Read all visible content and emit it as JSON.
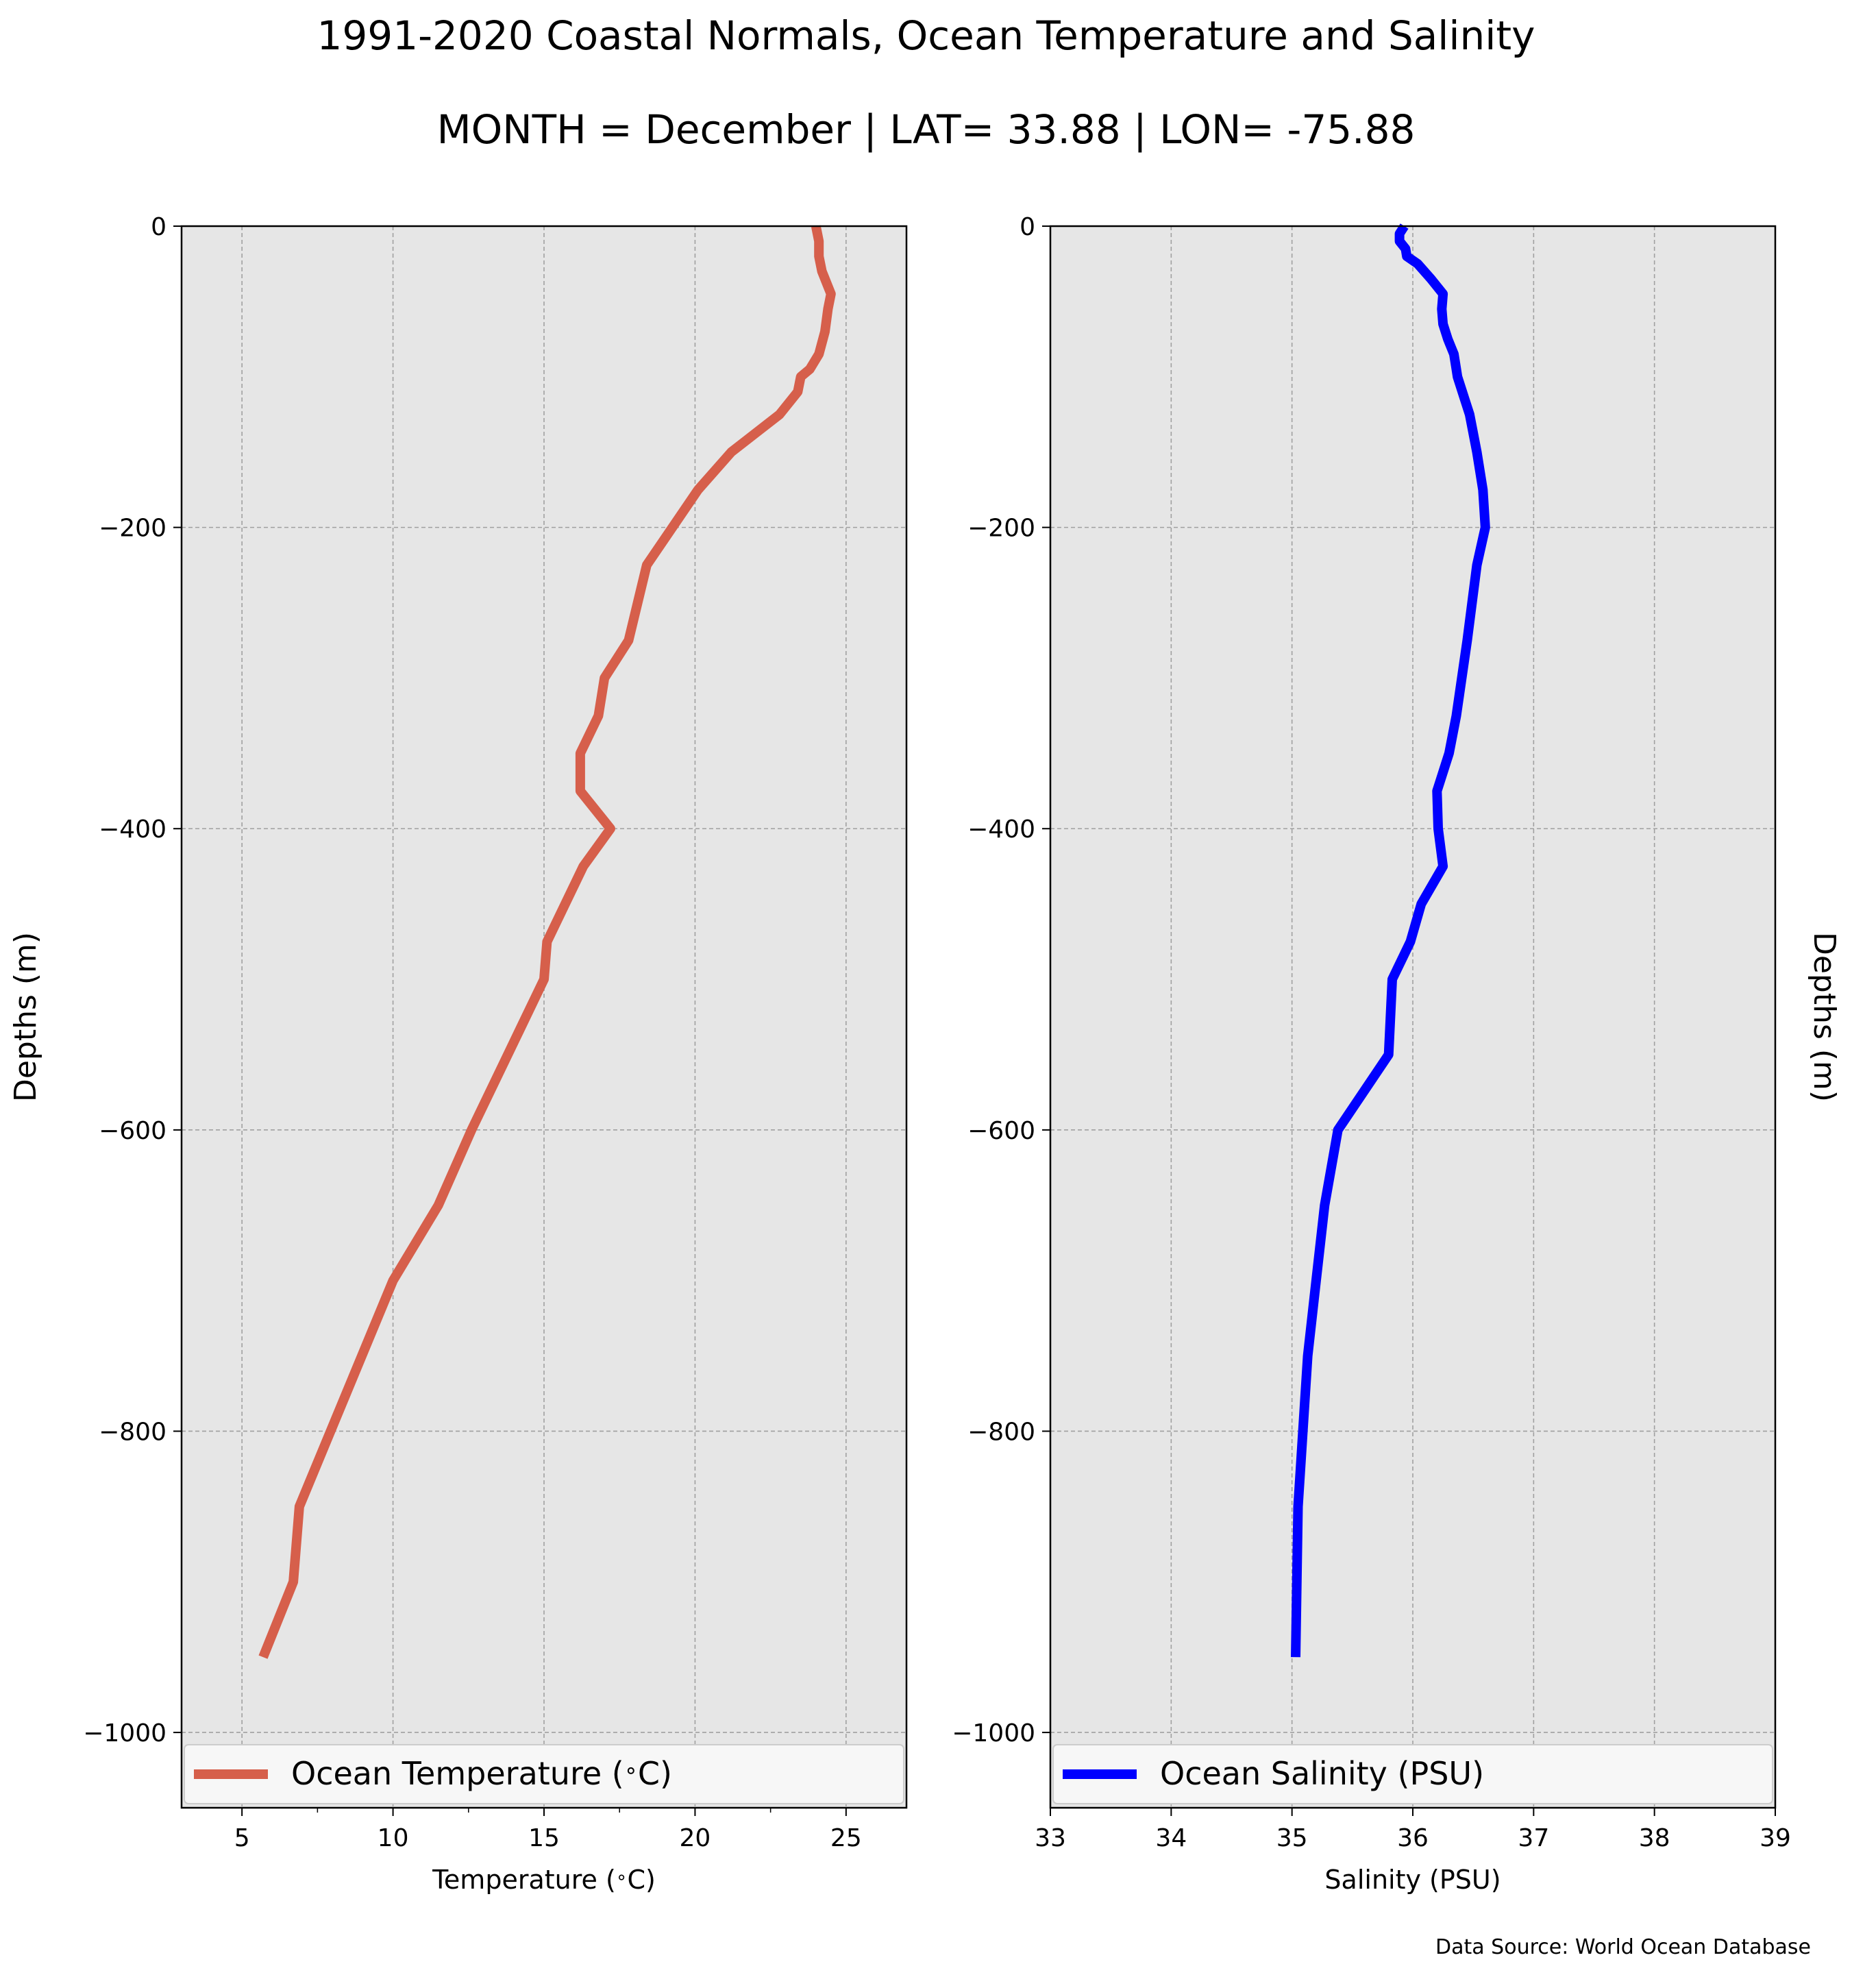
{
  "figure": {
    "title": "1991-2020 Coastal Normals, Ocean Temperature and Salinity",
    "subtitle": "MONTH = December | LAT= 33.88 | LON= -75.88",
    "source_note": "Data Source: World Ocean Database"
  },
  "colors": {
    "temperature_line": "#d65f4b",
    "salinity_line": "#0000ff",
    "plot_background": "#e6e6e6",
    "grid": "#a0a0a0"
  },
  "chart_data": [
    {
      "type": "line",
      "xlabel": "Temperature ($^\\circ$C)",
      "ylabel": "Depths (m)",
      "xlim": [
        3,
        27
      ],
      "ylim": [
        -1050,
        0
      ],
      "xticks": [
        5,
        10,
        15,
        20,
        25
      ],
      "xtick_labels": [
        "5",
        "10",
        "15",
        "20",
        "25"
      ],
      "yticks": [
        0,
        -200,
        -400,
        -600,
        -800,
        -1000
      ],
      "ytick_labels": [
        "0",
        "−200",
        "−400",
        "−600",
        "−800",
        "−1000"
      ],
      "grid": true,
      "legend_position": "bottom",
      "series": [
        {
          "name": "Ocean Temperature ($^\\circ$C)",
          "x": [
            24.0,
            24.1,
            24.1,
            24.2,
            24.5,
            24.4,
            24.3,
            24.1,
            23.8,
            23.5,
            23.4,
            22.8,
            21.2,
            20.1,
            18.4,
            17.8,
            17.0,
            16.8,
            16.2,
            16.2,
            17.2,
            16.3,
            15.1,
            15.0,
            13.8,
            12.6,
            11.5,
            10.0,
            6.9,
            6.7,
            5.7
          ],
          "y": [
            0,
            -10,
            -20,
            -30,
            -45,
            -55,
            -70,
            -85,
            -95,
            -100,
            -110,
            -125,
            -150,
            -175,
            -225,
            -275,
            -300,
            -325,
            -350,
            -375,
            -400,
            -425,
            -475,
            -500,
            -550,
            -600,
            -650,
            -700,
            -850,
            -900,
            -950
          ]
        }
      ]
    },
    {
      "type": "line",
      "xlabel": "Salinity (PSU)",
      "ylabel": "Depths (m)",
      "xlim": [
        33,
        39
      ],
      "ylim": [
        -1050,
        0
      ],
      "xticks": [
        33,
        34,
        35,
        36,
        37,
        38,
        39
      ],
      "xtick_labels": [
        "33",
        "34",
        "35",
        "36",
        "37",
        "38",
        "39"
      ],
      "yticks": [
        0,
        -200,
        -400,
        -600,
        -800,
        -1000
      ],
      "ytick_labels": [
        "0",
        "−200",
        "−400",
        "−600",
        "−800",
        "−1000"
      ],
      "grid": true,
      "legend_position": "bottom",
      "series": [
        {
          "name": "Ocean Salinity (PSU)",
          "x": [
            35.93,
            35.89,
            35.89,
            35.94,
            35.95,
            36.04,
            36.15,
            36.25,
            36.24,
            36.25,
            36.29,
            36.34,
            36.36,
            36.37,
            36.43,
            36.47,
            36.53,
            36.58,
            36.6,
            36.53,
            36.45,
            36.36,
            36.3,
            36.2,
            36.21,
            36.25,
            36.07,
            35.98,
            35.83,
            35.8,
            35.38,
            35.27,
            35.2,
            35.13,
            35.05,
            35.03
          ],
          "y": [
            0,
            -5,
            -10,
            -15,
            -20,
            -25,
            -35,
            -45,
            -55,
            -65,
            -75,
            -85,
            -95,
            -100,
            -115,
            -125,
            -150,
            -175,
            -200,
            -225,
            -275,
            -325,
            -350,
            -375,
            -400,
            -425,
            -450,
            -475,
            -500,
            -550,
            -600,
            -650,
            -700,
            -750,
            -850,
            -950
          ]
        }
      ]
    }
  ]
}
